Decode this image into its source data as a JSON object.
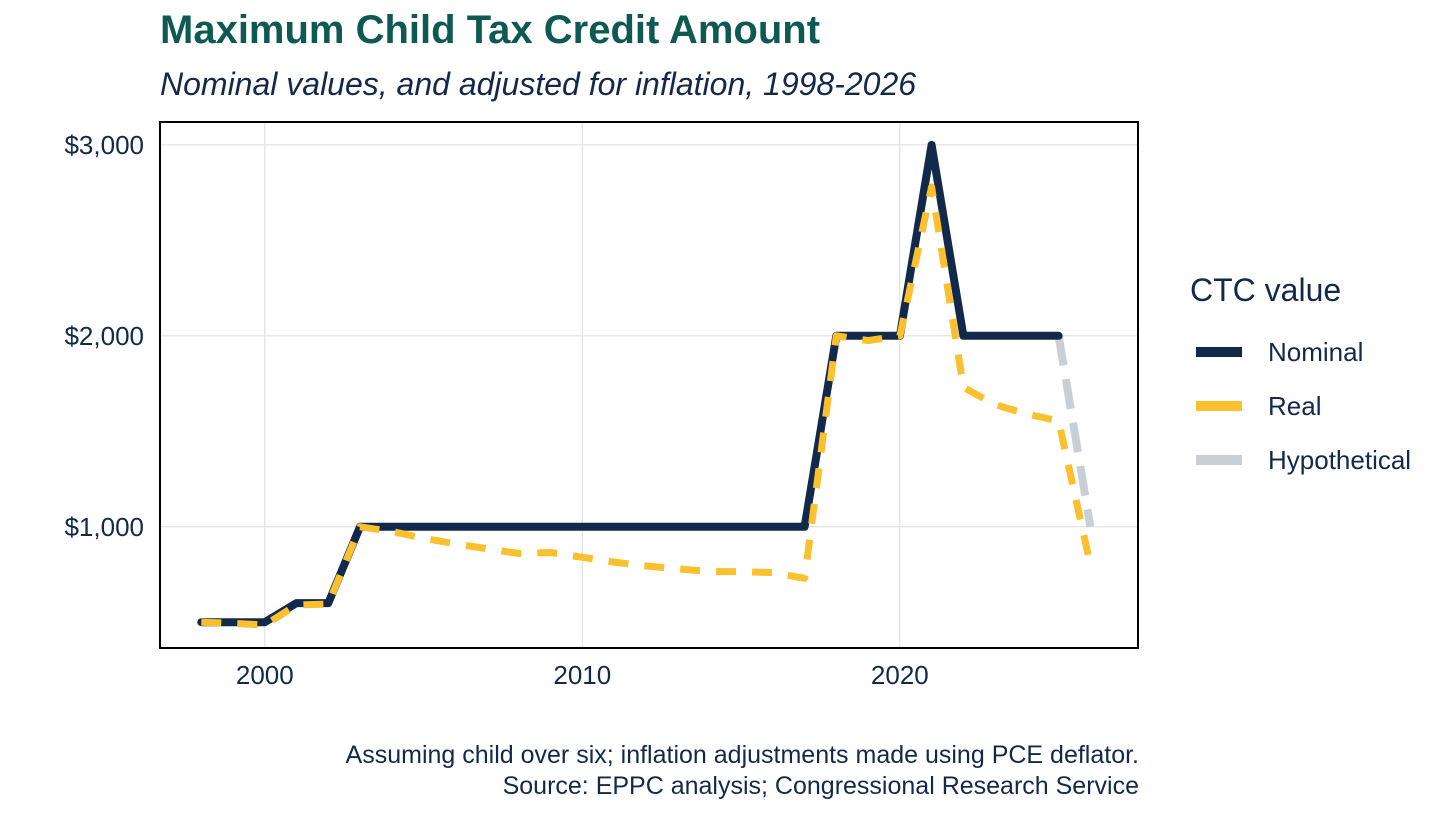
{
  "chart_data": {
    "type": "line",
    "title": "Maximum Child Tax Credit Amount",
    "subtitle": "Nominal values, and adjusted for inflation, 1998-2026",
    "xlim": [
      1996.7,
      2027.5
    ],
    "ylim": [
      365,
      3120
    ],
    "x_ticks": [
      2000,
      2010,
      2020
    ],
    "y_ticks": [
      1000,
      2000,
      3000
    ],
    "y_tick_labels": [
      "$1,000",
      "$2,000",
      "$3,000"
    ],
    "grid": true,
    "legend_title": "CTC value",
    "legend_position": "right",
    "series": [
      {
        "name": "Nominal",
        "color": "#13294b",
        "style": "solid",
        "points": [
          [
            1998,
            500
          ],
          [
            1999,
            500
          ],
          [
            2000,
            500
          ],
          [
            2001,
            600
          ],
          [
            2002,
            600
          ],
          [
            2003,
            1000
          ],
          [
            2004,
            1000
          ],
          [
            2005,
            1000
          ],
          [
            2006,
            1000
          ],
          [
            2007,
            1000
          ],
          [
            2008,
            1000
          ],
          [
            2009,
            1000
          ],
          [
            2010,
            1000
          ],
          [
            2011,
            1000
          ],
          [
            2012,
            1000
          ],
          [
            2013,
            1000
          ],
          [
            2014,
            1000
          ],
          [
            2015,
            1000
          ],
          [
            2016,
            1000
          ],
          [
            2017,
            1000
          ],
          [
            2018,
            2000
          ],
          [
            2019,
            2000
          ],
          [
            2020,
            2000
          ],
          [
            2021,
            3000
          ],
          [
            2022,
            2000
          ],
          [
            2023,
            2000
          ],
          [
            2024,
            2000
          ],
          [
            2025,
            2000
          ]
        ]
      },
      {
        "name": "Real",
        "color": "#fbc02d",
        "style": "dashed",
        "points": [
          [
            1998,
            500
          ],
          [
            1999,
            495
          ],
          [
            2000,
            485
          ],
          [
            2001,
            590
          ],
          [
            2002,
            595
          ],
          [
            2003,
            1000
          ],
          [
            2004,
            975
          ],
          [
            2005,
            940
          ],
          [
            2006,
            910
          ],
          [
            2007,
            885
          ],
          [
            2008,
            860
          ],
          [
            2009,
            865
          ],
          [
            2010,
            840
          ],
          [
            2011,
            815
          ],
          [
            2012,
            795
          ],
          [
            2013,
            780
          ],
          [
            2014,
            765
          ],
          [
            2015,
            765
          ],
          [
            2016,
            760
          ],
          [
            2017,
            730
          ],
          [
            2018,
            2000
          ],
          [
            2019,
            1975
          ],
          [
            2020,
            2000
          ],
          [
            2021,
            2780
          ],
          [
            2022,
            1730
          ],
          [
            2023,
            1640
          ],
          [
            2024,
            1590
          ],
          [
            2025,
            1555
          ],
          [
            2026,
            800
          ]
        ]
      },
      {
        "name": "Hypothetical",
        "color": "#c8cfd6",
        "style": "dashed",
        "points": [
          [
            2025,
            2000
          ],
          [
            2026,
            1000
          ]
        ]
      }
    ],
    "caption": [
      "Assuming child over six; inflation adjustments made using PCE deflator.",
      "Source: EPPC analysis; Congressional Research Service"
    ]
  }
}
